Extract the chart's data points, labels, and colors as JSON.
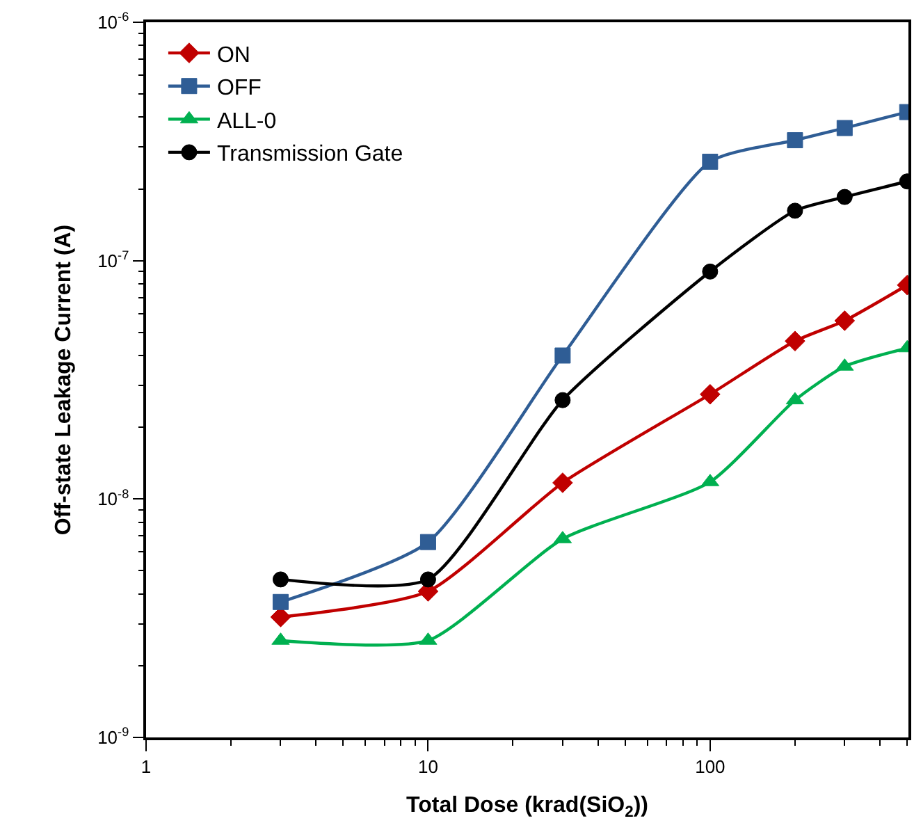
{
  "chart_data": {
    "type": "line",
    "xlabel": "Total Dose (krad(SiO$_{2}$))",
    "ylabel": "Off-state Leakage Current (A)",
    "log": "xy",
    "x": [
      3,
      10,
      30,
      100,
      200,
      300,
      500
    ],
    "xlim": [
      1,
      505
    ],
    "xticks": [
      1,
      10,
      100
    ],
    "ylim": [
      1e-09,
      1e-06
    ],
    "yticks": [
      {
        "value": 1e-09,
        "label": "10$^{-9}$"
      },
      {
        "value": 1e-08,
        "label": "10$^{-8}$"
      },
      {
        "value": 1e-07,
        "label": "10$^{-7}$"
      },
      {
        "value": 1e-06,
        "label": "10$^{-6}$"
      }
    ],
    "legend": "top left",
    "series": [
      {
        "name": "ON",
        "color": "#c00000",
        "marker": "diamond",
        "values": [
          3.2e-09,
          4.1e-09,
          1.17e-08,
          2.75e-08,
          4.6e-08,
          5.6e-08,
          7.9e-08
        ]
      },
      {
        "name": "OFF",
        "color": "#2f5d95",
        "marker": "square",
        "values": [
          3.7e-09,
          6.6e-09,
          4e-08,
          2.6e-07,
          3.2e-07,
          3.6e-07,
          4.2e-07
        ]
      },
      {
        "name": "ALL-0",
        "color": "#00b050",
        "marker": "triangle",
        "values": [
          2.55e-09,
          2.55e-09,
          6.8e-09,
          1.18e-08,
          2.6e-08,
          3.6e-08,
          4.3e-08
        ]
      },
      {
        "name": "Transmission Gate",
        "color": "#000000",
        "marker": "circle",
        "values": [
          4.6e-09,
          4.6e-09,
          2.6e-08,
          9e-08,
          1.62e-07,
          1.85e-07,
          2.15e-07
        ]
      }
    ]
  }
}
